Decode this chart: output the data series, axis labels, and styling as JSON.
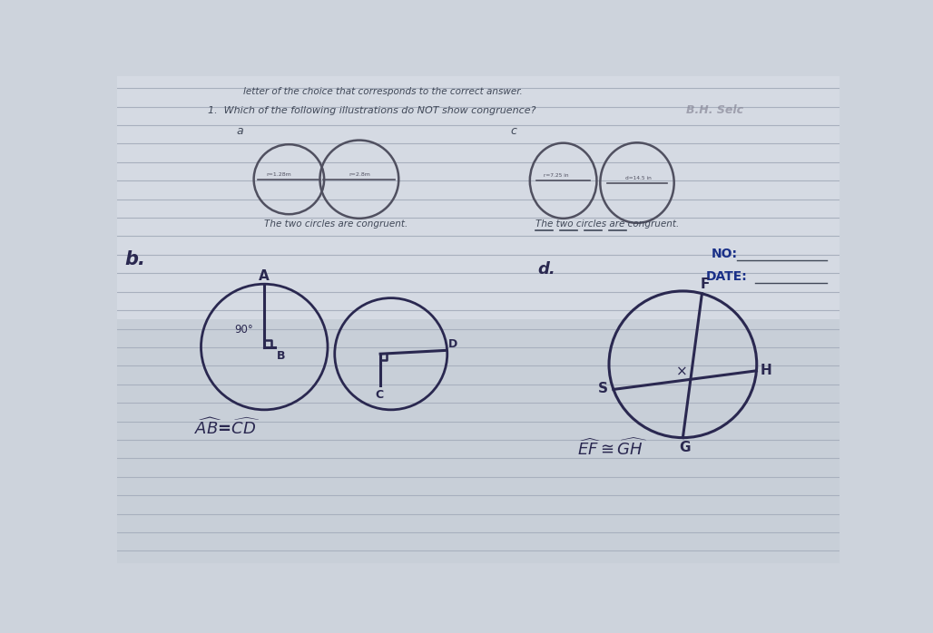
{
  "bg_color": "#cdd3dc",
  "line_color": "#a8b0be",
  "text_color": "#404858",
  "title_text": "letter of the choice that corresponds to the correct answer.",
  "question_text": "1.  Which of the following illustrations do NOT show congruence?",
  "label_a": "a",
  "label_c": "c",
  "label_b": "b.",
  "label_d": "d.",
  "caption_a": "The two circles are congruent.",
  "caption_c": "The two circles are congruent.",
  "no_label": "NO:",
  "date_label": "DATE:",
  "handwritten_color": "#2a2850",
  "ink_color": "#484060",
  "circle_ink": "#505060",
  "answer_hint": "B.H. Selc",
  "paper_upper_color": "#d8dde6",
  "paper_lower_color": "#c8cfd8"
}
